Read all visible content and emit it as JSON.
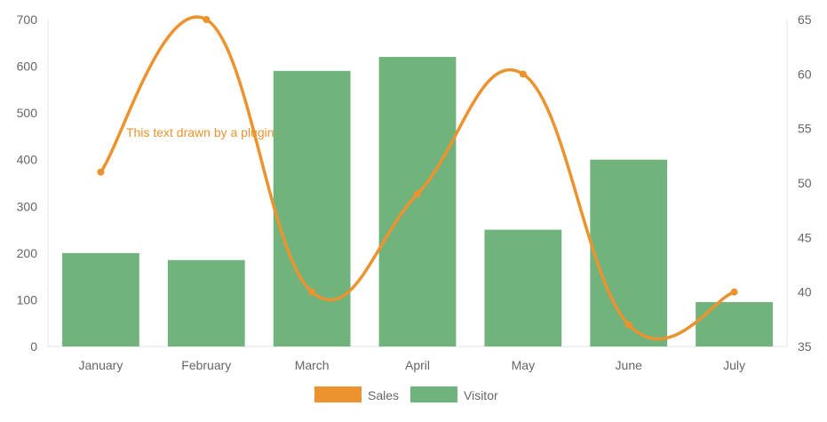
{
  "chart_data": {
    "type": "bar",
    "categories": [
      "January",
      "February",
      "March",
      "April",
      "May",
      "June",
      "July"
    ],
    "series": [
      {
        "name": "Visitor",
        "type": "bar",
        "axis": "left",
        "color": "#71b37c",
        "values": [
          200,
          185,
          590,
          620,
          250,
          400,
          95
        ]
      },
      {
        "name": "Sales",
        "type": "line",
        "smooth": true,
        "axis": "right",
        "color": "#ec932f",
        "values": [
          51,
          65,
          40,
          49,
          60,
          37,
          40
        ]
      }
    ],
    "y_left": {
      "min": 0,
      "max": 700,
      "ticks": [
        "0",
        "100",
        "200",
        "300",
        "400",
        "500",
        "600",
        "700"
      ]
    },
    "y_right": {
      "min": 35,
      "max": 65,
      "ticks": [
        "35",
        "40",
        "45",
        "50",
        "55",
        "60",
        "65"
      ]
    },
    "annotation": {
      "text": "This text drawn by a plugin",
      "color": "#ec932f"
    },
    "legend": {
      "position": "bottom",
      "items": [
        "Sales",
        "Visitor"
      ]
    },
    "grid": false
  }
}
